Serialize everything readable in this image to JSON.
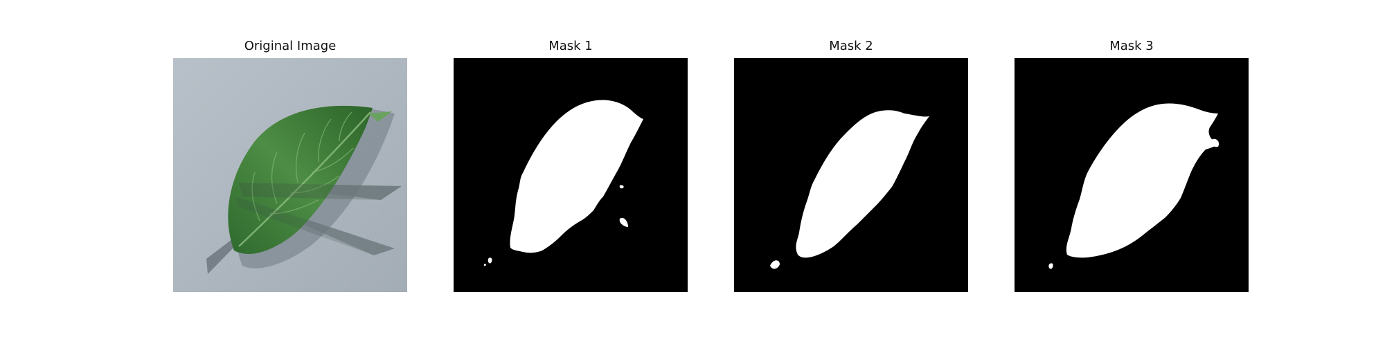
{
  "panels": [
    {
      "title": "Original Image",
      "kind": "photo",
      "subject": "leaf-on-gray-surface"
    },
    {
      "title": "Mask 1",
      "kind": "mask"
    },
    {
      "title": "Mask 2",
      "kind": "mask"
    },
    {
      "title": "Mask 3",
      "kind": "mask"
    }
  ],
  "colors": {
    "mask_background": "#000000",
    "mask_foreground": "#ffffff",
    "photo_background": "#a9b3bc",
    "leaf_green": "#3f7f3a",
    "leaf_dark": "#214f22",
    "leaf_light": "#6aa35f"
  }
}
